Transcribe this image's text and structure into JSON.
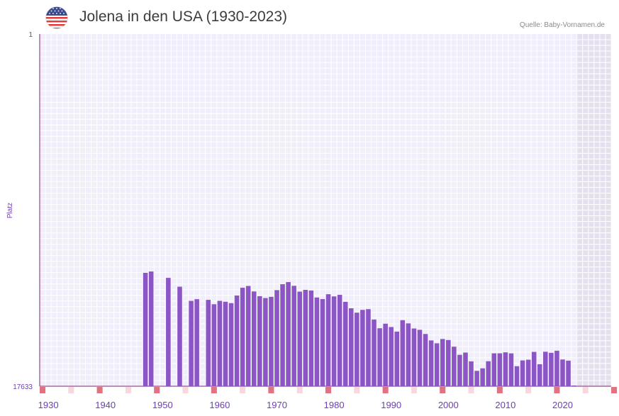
{
  "header": {
    "title": "Jolena in den USA (1930-2023)",
    "source": "Quelle: Baby-Vornamen.de",
    "flag_icon": "us-flag-icon"
  },
  "chart_data": {
    "type": "bar",
    "title": "Jolena in den USA (1930-2023)",
    "xlabel": "",
    "ylabel": "Platz",
    "y_axis_inverted": true,
    "y_tick_labels": [
      "1",
      "17633"
    ],
    "ylim": [
      1,
      17633
    ],
    "x_tick_labels": [
      "1930",
      "1940",
      "1950",
      "1960",
      "1970",
      "1980",
      "1990",
      "2000",
      "2010",
      "2020"
    ],
    "xlim": [
      1929,
      2029
    ],
    "shaded_future_from": 2023,
    "years": [
      1947,
      1948,
      1951,
      1953,
      1955,
      1956,
      1958,
      1959,
      1960,
      1961,
      1962,
      1963,
      1964,
      1965,
      1966,
      1967,
      1968,
      1969,
      1970,
      1971,
      1972,
      1973,
      1974,
      1975,
      1976,
      1977,
      1978,
      1979,
      1980,
      1981,
      1982,
      1983,
      1984,
      1985,
      1986,
      1987,
      1988,
      1989,
      1990,
      1991,
      1992,
      1993,
      1994,
      1995,
      1996,
      1997,
      1998,
      1999,
      2000,
      2001,
      2002,
      2003,
      2004,
      2005,
      2006,
      2007,
      2008,
      2009,
      2010,
      2011,
      2012,
      2013,
      2014,
      2015,
      2016,
      2017,
      2018,
      2019,
      2020,
      2021,
      2022
    ],
    "values": [
      11956,
      11889,
      12209,
      12650,
      13359,
      13274,
      13309,
      13528,
      13359,
      13403,
      13474,
      13092,
      12702,
      12613,
      12888,
      13125,
      13218,
      13158,
      12821,
      12526,
      12419,
      12606,
      12898,
      12808,
      12841,
      13190,
      13269,
      13026,
      13136,
      13058,
      13407,
      13731,
      13950,
      13811,
      13774,
      14292,
      14730,
      14502,
      14669,
      14898,
      14327,
      14487,
      14742,
      14807,
      15017,
      15340,
      15484,
      15269,
      15320,
      15653,
      16060,
      15947,
      16388,
      16864,
      16737,
      16381,
      15985,
      15985,
      15936,
      15987,
      16630,
      16341,
      16306,
      15914,
      16530,
      15907,
      15959,
      15856,
      16294,
      16353,
      17633
    ],
    "value_note": "Platz (Rang); niedrigere Zahl = beliebter"
  }
}
